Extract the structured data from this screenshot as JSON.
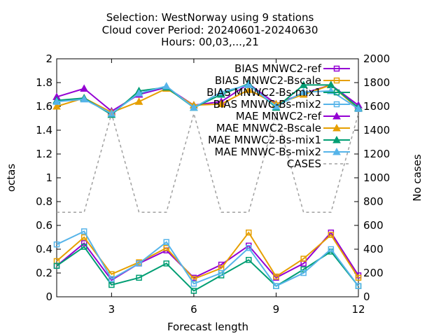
{
  "chart_data": {
    "type": "line",
    "title_lines": [
      "Selection: WestNorway using     9 stations",
      "Cloud cover   Period: 20240601-20240630",
      "Hours: 00,03,...,21"
    ],
    "xlabel": "Forecast length",
    "ylabel": "octas",
    "y2label": "No cases",
    "x": [
      1,
      2,
      3,
      4,
      5,
      6,
      7,
      8,
      9,
      10,
      11,
      12
    ],
    "xlim": [
      1,
      12
    ],
    "ylim": [
      0,
      2
    ],
    "y2lim": [
      0,
      2000
    ],
    "xticks": [
      "3",
      "6",
      "9",
      "12"
    ],
    "yticks": [
      "0",
      "0.2",
      "0.4",
      "0.6",
      "0.8",
      "1",
      "1.2",
      "1.4",
      "1.6",
      "1.8",
      "2"
    ],
    "y2ticks": [
      "0",
      "200",
      "400",
      "600",
      "800",
      "1000",
      "1200",
      "1400",
      "1600",
      "1800",
      "2000"
    ],
    "grid": false,
    "legend_position": "top-right",
    "series": [
      {
        "name": "BIAS MNWC2-ref",
        "color": "#9400d3",
        "marker": "square",
        "axis": "y",
        "values": [
          0.26,
          0.45,
          0.14,
          0.28,
          0.39,
          0.16,
          0.27,
          0.43,
          0.16,
          0.28,
          0.54,
          0.18
        ]
      },
      {
        "name": "BIAS MNWC2-Bscale",
        "color": "#e69f00",
        "marker": "square",
        "axis": "y",
        "values": [
          0.3,
          0.5,
          0.19,
          0.29,
          0.41,
          0.15,
          0.24,
          0.54,
          0.17,
          0.32,
          0.52,
          0.16
        ]
      },
      {
        "name": "BIAS MNWC2-Bs-mix1",
        "color": "#009e73",
        "marker": "square",
        "axis": "y",
        "values": [
          0.26,
          0.42,
          0.1,
          0.16,
          0.28,
          0.05,
          0.18,
          0.31,
          0.09,
          0.23,
          0.38,
          0.09
        ]
      },
      {
        "name": "BIAS MNWC-Bs-mix2",
        "color": "#56b4e9",
        "marker": "square",
        "axis": "y",
        "values": [
          0.44,
          0.55,
          0.15,
          0.28,
          0.46,
          0.11,
          0.2,
          0.41,
          0.09,
          0.2,
          0.4,
          0.09
        ]
      },
      {
        "name": "MAE MNWC2-ref",
        "color": "#9400d3",
        "marker": "triangle",
        "axis": "y",
        "values": [
          1.68,
          1.75,
          1.56,
          1.7,
          1.76,
          1.61,
          1.64,
          1.79,
          1.62,
          1.71,
          1.78,
          1.61
        ]
      },
      {
        "name": "MAE MNWC2-Bscale",
        "color": "#e69f00",
        "marker": "triangle",
        "axis": "y",
        "values": [
          1.6,
          1.67,
          1.55,
          1.64,
          1.75,
          1.61,
          1.62,
          1.74,
          1.62,
          1.7,
          1.78,
          1.58
        ]
      },
      {
        "name": "MAE MNWC2-Bs-mix1",
        "color": "#009e73",
        "marker": "triangle",
        "axis": "y",
        "values": [
          1.65,
          1.67,
          1.53,
          1.73,
          1.76,
          1.59,
          1.7,
          1.79,
          1.59,
          1.78,
          1.78,
          1.59
        ]
      },
      {
        "name": "MAE MNWC-Bs-mix2",
        "color": "#56b4e9",
        "marker": "triangle",
        "axis": "y",
        "values": [
          1.64,
          1.66,
          1.54,
          1.71,
          1.77,
          1.59,
          1.72,
          1.78,
          1.6,
          1.72,
          1.73,
          1.58
        ]
      },
      {
        "name": "CASES",
        "color": "#a0a0a0",
        "marker": "none",
        "dashed": true,
        "axis": "y2",
        "values": [
          710,
          710,
          1540,
          710,
          710,
          1540,
          710,
          710,
          1540,
          710,
          710,
          1540
        ]
      }
    ]
  }
}
